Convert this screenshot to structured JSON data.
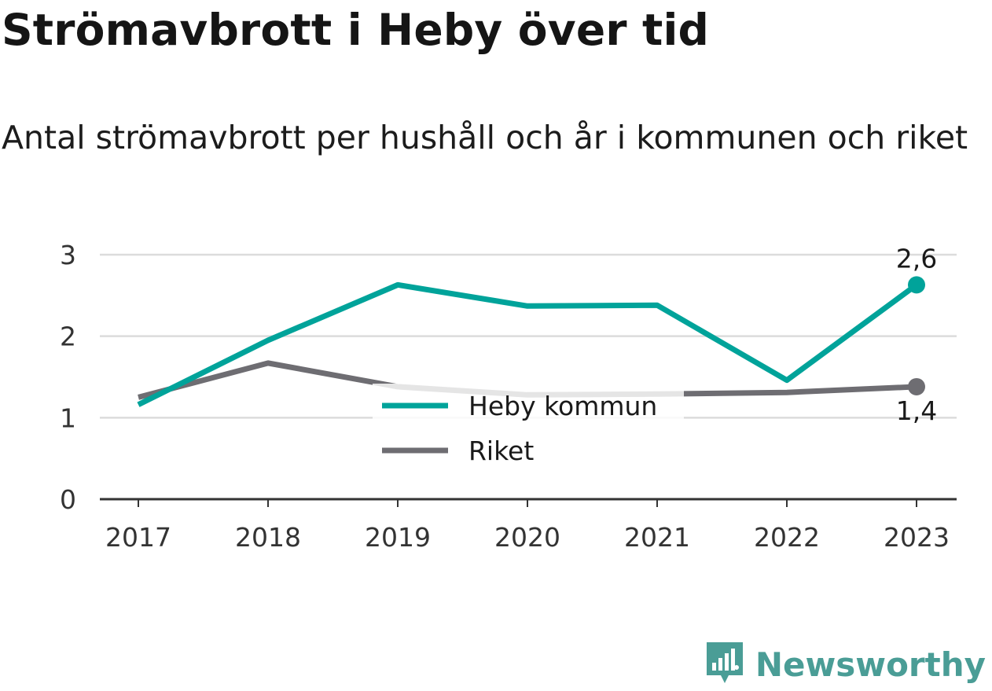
{
  "header": {
    "title": "Strömavbrott i Heby över tid",
    "subtitle": "Antal strömavbrott per hushåll och år i kommunen och riket"
  },
  "brand": {
    "name": "Newsworthy",
    "icon": "newsworthy-logo-icon",
    "color": "#4a9d96"
  },
  "chart_data": {
    "type": "line",
    "title": "Strömavbrott i Heby över tid",
    "subtitle": "Antal strömavbrott per hushåll och år i kommunen och riket",
    "xlabel": "",
    "ylabel": "",
    "categories": [
      "2017",
      "2018",
      "2019",
      "2020",
      "2021",
      "2022",
      "2023"
    ],
    "ylim": [
      0,
      3
    ],
    "yticks": [
      "0",
      "1",
      "2",
      "3"
    ],
    "grid": true,
    "legend_position": "center",
    "series": [
      {
        "name": "Heby kommun",
        "color": "#00a39a",
        "values": [
          1.16,
          1.95,
          2.63,
          2.37,
          2.38,
          1.46,
          2.63
        ],
        "end_label": "2,6"
      },
      {
        "name": "Riket",
        "color": "#6e6d72",
        "values": [
          1.25,
          1.67,
          1.38,
          1.28,
          1.29,
          1.31,
          1.38
        ],
        "end_label": "1,4"
      }
    ]
  }
}
